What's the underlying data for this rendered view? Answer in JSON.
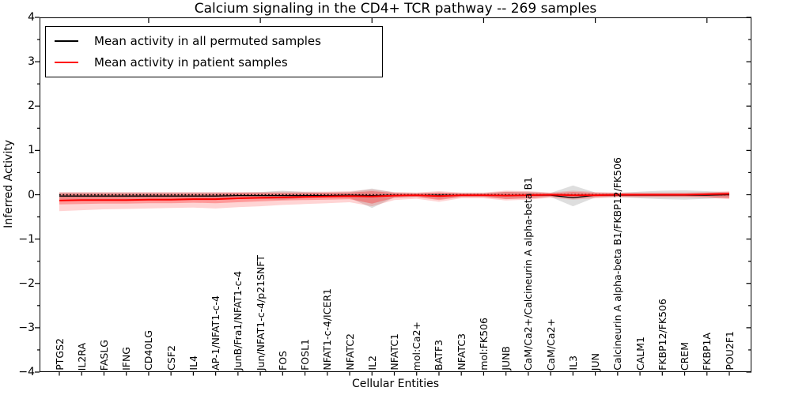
{
  "chart_data": {
    "type": "line",
    "title": "Calcium signaling in the CD4+ TCR pathway -- 269 samples",
    "xlabel": "Cellular Entities",
    "ylabel": "Inferred Activity",
    "ylim": [
      -4,
      4
    ],
    "yticks": [
      4,
      3,
      2,
      1,
      0,
      -1,
      -2,
      -3,
      -4
    ],
    "ytick_labels": [
      "4",
      "3",
      "2",
      "1",
      "0",
      "−1",
      "−2",
      "−3",
      "−4"
    ],
    "grid": false,
    "legend_position": "upper left",
    "zero_reference_line": 0,
    "categories": [
      "PTGS2",
      "IL2RA",
      "FASLG",
      "IFNG",
      "CD40LG",
      "CSF2",
      "IL4",
      "AP-1/NFAT1-c-4",
      "JunB/Fra1/NFAT1-c-4",
      "Jun/NFAT1-c-4/p21SNFT",
      "FOS",
      "FOSL1",
      "NFAT1-c-4/ICER1",
      "NFATC2",
      "IL2",
      "NFATC1",
      "mol:Ca2+",
      "BATF3",
      "NFATC3",
      "mol:FK506",
      "JUNB",
      "CaM/Ca2+/Calcineurin A alpha-beta B1",
      "CaM/Ca2+",
      "IL3",
      "JUN",
      "Calcineurin A alpha-beta B1/FKBP12/FK506",
      "CALM1",
      "FKBP12/FK506",
      "CREM",
      "FKBP1A",
      "POU2F1"
    ],
    "series": [
      {
        "name": "Mean activity in all permuted samples",
        "color": "#000000",
        "values": [
          -0.03,
          -0.03,
          -0.03,
          -0.03,
          -0.03,
          -0.03,
          -0.03,
          -0.03,
          -0.02,
          -0.02,
          -0.02,
          -0.02,
          -0.02,
          -0.01,
          -0.02,
          -0.01,
          -0.01,
          -0.01,
          -0.01,
          -0.01,
          -0.01,
          -0.01,
          -0.01,
          -0.07,
          -0.01,
          -0.01,
          -0.01,
          -0.01,
          -0.01,
          -0.01,
          0.0
        ],
        "band_upper": [
          0.05,
          0.05,
          0.05,
          0.05,
          0.05,
          0.05,
          0.05,
          0.05,
          0.05,
          0.06,
          0.09,
          0.06,
          0.05,
          0.06,
          0.14,
          0.05,
          0.04,
          0.05,
          0.04,
          0.04,
          0.07,
          0.07,
          0.04,
          0.21,
          0.05,
          0.04,
          0.07,
          0.09,
          0.1,
          0.08,
          0.05
        ],
        "band_lower": [
          -0.09,
          -0.09,
          -0.09,
          -0.09,
          -0.09,
          -0.09,
          -0.09,
          -0.1,
          -0.09,
          -0.09,
          -0.11,
          -0.07,
          -0.06,
          -0.07,
          -0.3,
          -0.06,
          -0.05,
          -0.1,
          -0.05,
          -0.05,
          -0.09,
          -0.08,
          -0.05,
          -0.26,
          -0.06,
          -0.05,
          -0.08,
          -0.1,
          -0.11,
          -0.09,
          -0.06
        ]
      },
      {
        "name": "Mean activity in patient samples",
        "color": "#ff0000",
        "values": [
          -0.13,
          -0.12,
          -0.12,
          -0.12,
          -0.11,
          -0.11,
          -0.1,
          -0.1,
          -0.08,
          -0.07,
          -0.06,
          -0.05,
          -0.04,
          -0.03,
          -0.04,
          -0.02,
          -0.01,
          -0.03,
          -0.01,
          -0.01,
          -0.02,
          -0.01,
          0.0,
          -0.01,
          -0.01,
          0.0,
          0.0,
          0.0,
          0.0,
          0.01,
          0.02
        ],
        "band_upper": [
          0.03,
          0.03,
          0.03,
          0.03,
          0.03,
          0.03,
          0.03,
          0.03,
          0.04,
          0.04,
          0.04,
          0.04,
          0.05,
          0.05,
          0.08,
          0.04,
          0.03,
          0.05,
          0.03,
          0.03,
          0.06,
          0.05,
          0.03,
          0.06,
          0.04,
          0.03,
          0.03,
          0.03,
          0.03,
          0.04,
          0.06
        ],
        "band_lower": [
          -0.22,
          -0.21,
          -0.2,
          -0.2,
          -0.19,
          -0.19,
          -0.18,
          -0.19,
          -0.17,
          -0.15,
          -0.13,
          -0.12,
          -0.11,
          -0.1,
          -0.2,
          -0.07,
          -0.05,
          -0.12,
          -0.05,
          -0.05,
          -0.1,
          -0.08,
          -0.04,
          -0.08,
          -0.05,
          -0.04,
          -0.04,
          -0.04,
          -0.04,
          -0.05,
          -0.08
        ],
        "outer_band_upper": [
          0.06,
          0.06,
          0.06,
          0.06,
          0.06,
          0.06,
          0.06,
          0.06,
          0.06,
          0.06,
          0.07,
          0.07,
          0.07,
          0.08,
          0.12,
          0.06,
          0.05,
          0.08,
          0.05,
          0.05,
          0.09,
          0.08,
          0.05,
          0.09,
          0.06,
          0.05,
          0.05,
          0.05,
          0.05,
          0.06,
          0.08
        ],
        "outer_band_lower": [
          -0.37,
          -0.35,
          -0.33,
          -0.32,
          -0.31,
          -0.3,
          -0.29,
          -0.31,
          -0.28,
          -0.26,
          -0.23,
          -0.21,
          -0.19,
          -0.17,
          -0.26,
          -0.12,
          -0.09,
          -0.16,
          -0.08,
          -0.08,
          -0.13,
          -0.11,
          -0.07,
          -0.11,
          -0.08,
          -0.06,
          -0.06,
          -0.06,
          -0.06,
          -0.07,
          -0.1
        ]
      }
    ],
    "band_colors": {
      "permuted": "rgba(0,0,0,0.13)",
      "patient_inner": "rgba(255,0,0,0.28)",
      "patient_outer": "rgba(255,0,0,0.17)"
    }
  }
}
